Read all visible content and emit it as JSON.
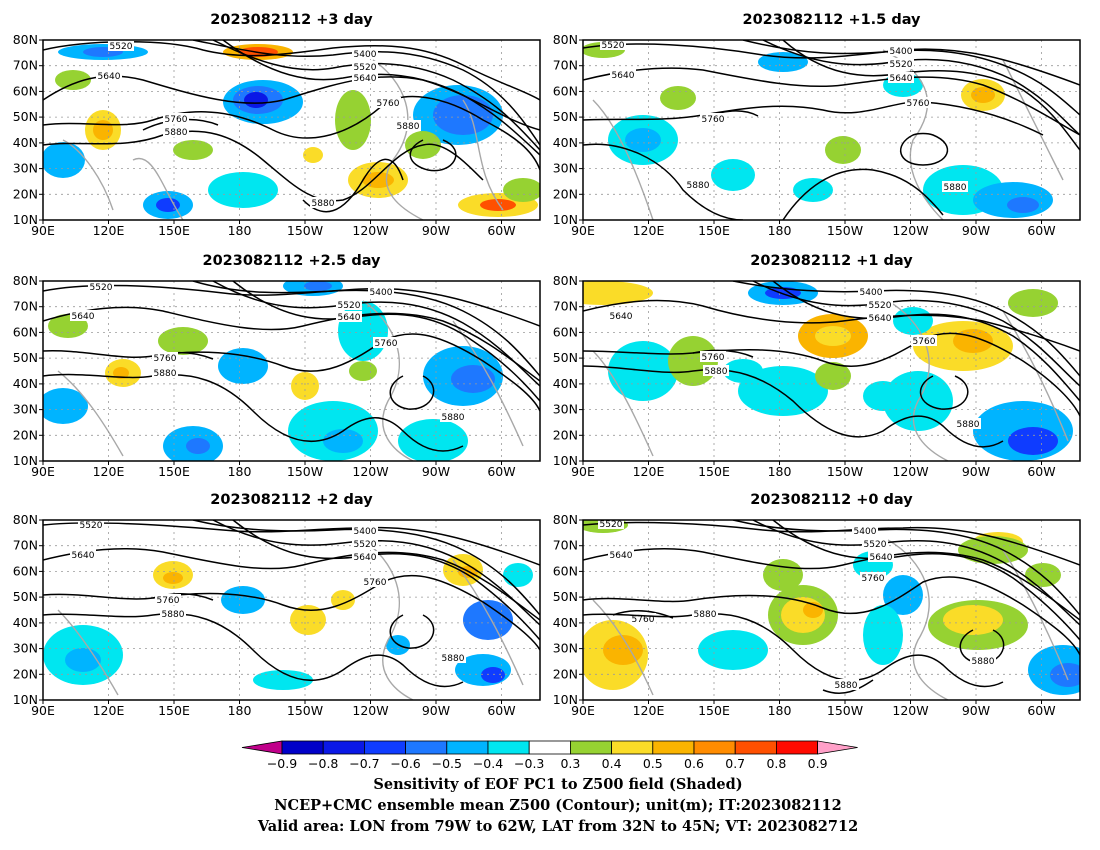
{
  "panels": [
    {
      "title": "2023082112  +3 day",
      "contours": [
        {
          "value": 5520,
          "label": "5520"
        },
        {
          "value": 5640,
          "label": "5640"
        },
        {
          "value": 5400,
          "label": "5400"
        },
        {
          "value": 5520,
          "label": "5520"
        },
        {
          "value": 5640,
          "label": "5640"
        },
        {
          "value": 5760,
          "label": "5760"
        },
        {
          "value": 5760,
          "label": "5760"
        },
        {
          "value": 5880,
          "label": "5880"
        },
        {
          "value": 5880,
          "label": "5880"
        },
        {
          "value": 5880,
          "label": "5880"
        }
      ]
    },
    {
      "title": "2023082112  +1.5  day",
      "contours": [
        {
          "value": 5520,
          "label": "5520"
        },
        {
          "value": 5640,
          "label": "5640"
        },
        {
          "value": 5400,
          "label": "5400"
        },
        {
          "value": 5520,
          "label": "5520"
        },
        {
          "value": 5640,
          "label": "5640"
        },
        {
          "value": 5760,
          "label": "5760"
        },
        {
          "value": 5760,
          "label": "5760"
        },
        {
          "value": 5880,
          "label": "5880"
        },
        {
          "value": 5880,
          "label": "5880"
        }
      ]
    },
    {
      "title": "2023082112  +2.5  day",
      "contours": [
        {
          "value": 5520,
          "label": "5520"
        },
        {
          "value": 5640,
          "label": "5640"
        },
        {
          "value": 5400,
          "label": "5400"
        },
        {
          "value": 5520,
          "label": "5520"
        },
        {
          "value": 5640,
          "label": "5640"
        },
        {
          "value": 5760,
          "label": "5760"
        },
        {
          "value": 5760,
          "label": "5760"
        },
        {
          "value": 5880,
          "label": "5880"
        },
        {
          "value": 5880,
          "label": "5880"
        }
      ]
    },
    {
      "title": "2023082112  +1  day",
      "contours": [
        {
          "value": 5640,
          "label": "5640"
        },
        {
          "value": 5400,
          "label": "5400"
        },
        {
          "value": 5520,
          "label": "5520"
        },
        {
          "value": 5640,
          "label": "5640"
        },
        {
          "value": 5760,
          "label": "5760"
        },
        {
          "value": 5760,
          "label": "5760"
        },
        {
          "value": 5880,
          "label": "5880"
        },
        {
          "value": 5880,
          "label": "5880"
        }
      ]
    },
    {
      "title": "2023082112  +2  day",
      "contours": [
        {
          "value": 5520,
          "label": "5520"
        },
        {
          "value": 5640,
          "label": "5640"
        },
        {
          "value": 5400,
          "label": "5400"
        },
        {
          "value": 5520,
          "label": "5520"
        },
        {
          "value": 5640,
          "label": "5640"
        },
        {
          "value": 5760,
          "label": "5760"
        },
        {
          "value": 5760,
          "label": "5760"
        },
        {
          "value": 5880,
          "label": "5880"
        },
        {
          "value": 5880,
          "label": "5880"
        }
      ]
    },
    {
      "title": "2023082112  +0  day",
      "contours": [
        {
          "value": 5520,
          "label": "5520"
        },
        {
          "value": 5640,
          "label": "5640"
        },
        {
          "value": 5400,
          "label": "5400"
        },
        {
          "value": 5520,
          "label": "5520"
        },
        {
          "value": 5640,
          "label": "5640"
        },
        {
          "value": 5760,
          "label": "5760"
        },
        {
          "value": 5760,
          "label": "5760"
        },
        {
          "value": 5880,
          "label": "5880"
        },
        {
          "value": 5880,
          "label": "5880"
        },
        {
          "value": 5880,
          "label": "5880"
        }
      ]
    }
  ],
  "lat_labels": [
    "80N",
    "70N",
    "60N",
    "50N",
    "40N",
    "30N",
    "20N",
    "10N"
  ],
  "lon_labels": [
    "90E",
    "120E",
    "150E",
    "180",
    "150W",
    "120W",
    "90W",
    "60W"
  ],
  "colorbar": {
    "ticks": [
      "−0.9",
      "−0.8",
      "−0.7",
      "−0.6",
      "−0.5",
      "−0.4",
      "−0.3",
      "0.3",
      "0.4",
      "0.5",
      "0.6",
      "0.7",
      "0.8",
      "0.9"
    ],
    "colors": [
      "#c0008a",
      "#0000c8",
      "#0a18e6",
      "#0f3cff",
      "#1e78ff",
      "#00b4ff",
      "#00e6f0",
      "#ffffff",
      "#96d232",
      "#fadc28",
      "#fab400",
      "#ff8c00",
      "#ff5000",
      "#ff0a00",
      "#ffa0c8"
    ]
  },
  "caption": {
    "line1": "Sensitivity of EOF PC1 to Z500 field (Shaded)",
    "line2": "NCEP+CMC ensemble mean Z500 (Contour); unit(m); IT:2023082112",
    "line3": "Valid area: LON from 79W to 62W, LAT from 32N to 45N; VT: 2023082712"
  }
}
